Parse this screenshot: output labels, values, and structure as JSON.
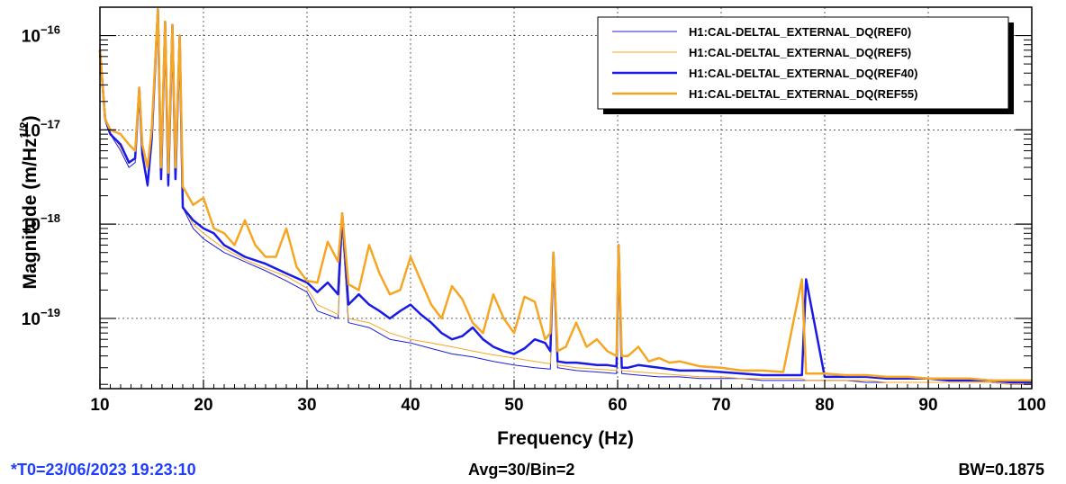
{
  "chart_data": {
    "type": "line",
    "xlabel": "Frequency (Hz)",
    "ylabel_main": "Magnitude (m/Hz",
    "ylabel_sup": "1/2",
    "ylabel_tail": ")",
    "xlim": [
      10,
      100
    ],
    "ylim": [
      1.8e-20,
      2e-16
    ],
    "yscale": "log",
    "grid": true,
    "legend_position": "top-right",
    "x_ticks": [
      10,
      20,
      30,
      40,
      50,
      60,
      70,
      80,
      90,
      100
    ],
    "y_ticks": [
      {
        "value": 1e-16,
        "base": "10",
        "exp": "−16"
      },
      {
        "value": 1e-17,
        "base": "10",
        "exp": "−17"
      },
      {
        "value": 1e-18,
        "base": "10",
        "exp": "−18"
      },
      {
        "value": 1e-19,
        "base": "10",
        "exp": "−19"
      }
    ],
    "series": [
      {
        "name": "H1:CAL-DELTAL_EXTERNAL_DQ(REF0)",
        "color": "#1f1fd6",
        "width": 1,
        "x": [
          10,
          10.5,
          11,
          12,
          12.8,
          13.4,
          13.8,
          14.1,
          14.6,
          15,
          15.6,
          15.9,
          16.3,
          16.6,
          17,
          17.3,
          17.7,
          18,
          19,
          20,
          22,
          24,
          26,
          28,
          30,
          31,
          33,
          33.4,
          34,
          36,
          38,
          40,
          42,
          44,
          46,
          48,
          50,
          52,
          53.5,
          53.8,
          54.2,
          56,
          58,
          59.9,
          60.1,
          60.4,
          62,
          64,
          66,
          68,
          70,
          72,
          74,
          76,
          77.8,
          78.2,
          80,
          82,
          84,
          86,
          88,
          90,
          92,
          94,
          96,
          98,
          100
        ],
        "y": [
          8e-17,
          1.4e-17,
          9e-18,
          6e-18,
          4e-18,
          4.5e-18,
          2.5e-17,
          5e-18,
          2.5e-18,
          8e-18,
          1.5e-16,
          3e-18,
          1.2e-16,
          2.5e-18,
          1.1e-16,
          3e-18,
          9e-17,
          1.5e-18,
          9e-19,
          7e-19,
          5e-19,
          4e-19,
          3.2e-19,
          2.5e-19,
          1.9e-19,
          1.2e-19,
          1e-19,
          9e-19,
          9e-20,
          8e-20,
          6e-20,
          5.5e-20,
          4.8e-20,
          4.2e-20,
          3.9e-20,
          3.5e-20,
          3.2e-20,
          3e-20,
          2.9e-20,
          4e-19,
          3e-20,
          2.8e-20,
          2.7e-20,
          2.6e-20,
          5e-19,
          2.6e-20,
          2.5e-20,
          2.4e-20,
          2.4e-20,
          2.3e-20,
          2.3e-20,
          2.3e-20,
          2.2e-20,
          2.2e-20,
          2.2e-20,
          2.2e-20,
          2.2e-20,
          2.2e-20,
          2.1e-20,
          2.1e-20,
          2.1e-20,
          2.1e-20,
          2.1e-20,
          2.1e-20,
          2.1e-20,
          2e-20,
          2e-20
        ]
      },
      {
        "name": "H1:CAL-DELTAL_EXTERNAL_DQ(REF5)",
        "color": "#f5a623",
        "width": 1,
        "x": [
          10,
          10.5,
          11,
          12,
          12.8,
          13.4,
          13.8,
          14.1,
          14.6,
          15,
          15.6,
          15.9,
          16.3,
          16.6,
          17,
          17.3,
          17.7,
          18,
          19,
          20,
          22,
          24,
          26,
          28,
          30,
          31,
          33,
          33.4,
          34,
          36,
          38,
          40,
          42,
          44,
          46,
          48,
          50,
          52,
          53.5,
          53.8,
          54.2,
          56,
          58,
          59.9,
          60.1,
          60.4,
          62,
          64,
          66,
          68,
          70,
          72,
          74,
          76,
          77.8,
          78.2,
          80,
          82,
          84,
          86,
          88,
          90,
          92,
          94,
          96,
          98,
          100
        ],
        "y": [
          8e-17,
          1.4e-17,
          9.5e-18,
          6.5e-18,
          4.5e-18,
          5e-18,
          2.5e-17,
          5.5e-18,
          2.8e-18,
          8e-18,
          1.5e-16,
          3.2e-18,
          1.2e-16,
          2.8e-18,
          1.1e-16,
          3.2e-18,
          9e-17,
          1.6e-18,
          1e-18,
          8e-19,
          5.5e-19,
          4.2e-19,
          3.4e-19,
          2.8e-19,
          2.1e-19,
          1.4e-19,
          1.1e-19,
          9e-19,
          1e-19,
          9e-20,
          7e-20,
          6e-20,
          5.5e-20,
          5e-20,
          4.5e-20,
          4.1e-20,
          3.8e-20,
          3.5e-20,
          3.3e-20,
          4e-19,
          3.2e-20,
          3e-20,
          2.9e-20,
          2.8e-20,
          5e-19,
          2.8e-20,
          2.7e-20,
          2.6e-20,
          2.5e-20,
          2.4e-20,
          2.4e-20,
          2.3e-20,
          2.3e-20,
          2.3e-20,
          2.3e-20,
          2.2e-20,
          2.2e-20,
          2.2e-20,
          2.2e-20,
          2.1e-20,
          2.1e-20,
          2.1e-20,
          2.1e-20,
          2.1e-20,
          2.1e-20,
          2e-20,
          2e-20
        ]
      },
      {
        "name": "H1:CAL-DELTAL_EXTERNAL_DQ(REF40)",
        "color": "#1a1ae6",
        "width": 2.5,
        "x": [
          10,
          10.5,
          11,
          12,
          12.8,
          13.4,
          13.8,
          14.1,
          14.6,
          15,
          15.6,
          15.9,
          16.3,
          16.6,
          17,
          17.3,
          17.7,
          18,
          19,
          20,
          21,
          22,
          24,
          26,
          28,
          30,
          31,
          32,
          33,
          33.4,
          34,
          35,
          36,
          37,
          38,
          39,
          40,
          41,
          42,
          43,
          44,
          45,
          46,
          47,
          48,
          49,
          50,
          51,
          52,
          53,
          53.5,
          53.8,
          54.2,
          55,
          56,
          57,
          58,
          59,
          59.9,
          60.1,
          60.4,
          61,
          62,
          64,
          66,
          68,
          70,
          72,
          74,
          76,
          77.8,
          78.2,
          80,
          82,
          84,
          86,
          88,
          90,
          92,
          94,
          96,
          98,
          100
        ],
        "y": [
          7e-17,
          1.3e-17,
          9e-18,
          7e-18,
          4.5e-18,
          5e-18,
          2.8e-17,
          5.5e-18,
          2.6e-18,
          8e-18,
          1.9e-16,
          3e-18,
          1.4e-16,
          2.6e-18,
          1.3e-16,
          3e-18,
          1e-16,
          1.5e-18,
          1.1e-18,
          9e-19,
          8e-19,
          6e-19,
          4.5e-19,
          3.8e-19,
          3e-19,
          2.4e-19,
          1.9e-19,
          2.4e-19,
          1.8e-19,
          1.3e-18,
          1.4e-19,
          1.8e-19,
          1.4e-19,
          1.2e-19,
          1e-19,
          1.2e-19,
          1.4e-19,
          1.1e-19,
          9e-20,
          7e-20,
          6e-20,
          6.5e-20,
          8e-20,
          6e-20,
          5e-20,
          4.5e-20,
          4.2e-20,
          4.8e-20,
          6e-20,
          5.5e-20,
          4.5e-20,
          5e-19,
          3.5e-20,
          3.4e-20,
          3.4e-20,
          3.3e-20,
          3.2e-20,
          3.2e-20,
          3.1e-20,
          6e-19,
          3e-20,
          3e-20,
          3.2e-20,
          3e-20,
          2.8e-20,
          2.8e-20,
          2.7e-20,
          2.6e-20,
          2.5e-20,
          2.5e-20,
          2.5e-20,
          2.6e-19,
          2.4e-20,
          2.4e-20,
          2.4e-20,
          2.3e-20,
          2.3e-20,
          2.3e-20,
          2.2e-20,
          2.2e-20,
          2.2e-20,
          2.1e-20,
          2.1e-20
        ]
      },
      {
        "name": "H1:CAL-DELTAL_EXTERNAL_DQ(REF55)",
        "color": "#f5a623",
        "width": 2.5,
        "x": [
          10,
          10.5,
          11,
          12,
          12.8,
          13.4,
          13.8,
          14.1,
          14.6,
          15,
          15.6,
          15.9,
          16.3,
          16.6,
          17,
          17.3,
          17.7,
          18,
          19,
          20,
          21,
          22,
          23,
          24,
          25,
          26,
          27,
          28,
          29,
          30,
          31,
          32,
          33,
          33.4,
          34,
          35,
          36,
          37,
          38,
          39,
          40,
          41,
          42,
          43,
          44,
          45,
          46,
          47,
          48,
          49,
          50,
          51,
          52,
          53,
          53.5,
          53.8,
          54.2,
          55,
          56,
          57,
          58,
          59,
          59.9,
          60.1,
          60.4,
          61,
          62,
          63,
          64,
          65,
          66,
          68,
          70,
          72,
          74,
          76,
          77.8,
          78.2,
          80,
          82,
          84,
          86,
          88,
          90,
          92,
          94,
          96,
          98,
          100
        ],
        "y": [
          7e-17,
          1.3e-17,
          1e-17,
          9e-18,
          7e-18,
          6e-18,
          2.8e-17,
          7e-18,
          4e-18,
          1e-17,
          1.9e-16,
          4e-18,
          1.4e-16,
          3.5e-18,
          1.3e-16,
          4e-18,
          1e-16,
          2.5e-18,
          1.6e-18,
          1.9e-18,
          9e-19,
          8e-19,
          6e-19,
          1.1e-18,
          6e-19,
          4.5e-19,
          4.5e-19,
          9e-19,
          3.5e-19,
          2.5e-19,
          2.4e-19,
          6.5e-19,
          4e-19,
          1.3e-18,
          2.3e-19,
          2e-19,
          6e-19,
          3e-19,
          1.8e-19,
          2e-19,
          4.5e-19,
          2.5e-19,
          1.4e-19,
          1e-19,
          2.2e-19,
          1.6e-19,
          9e-20,
          7e-20,
          1.8e-19,
          1e-19,
          7e-20,
          1.7e-19,
          1.5e-19,
          6e-20,
          7e-20,
          5e-19,
          4.5e-20,
          5e-20,
          9e-20,
          5e-20,
          6e-20,
          4.5e-20,
          4e-20,
          6e-19,
          4e-20,
          4e-20,
          5e-20,
          3.5e-20,
          3.8e-20,
          3.4e-20,
          3.5e-20,
          3.1e-20,
          3e-20,
          2.8e-20,
          2.8e-20,
          2.7e-20,
          2.6e-19,
          2.6e-20,
          2.6e-20,
          2.5e-20,
          2.5e-20,
          2.4e-20,
          2.4e-20,
          2.3e-20,
          2.3e-20,
          2.3e-20,
          2.2e-20,
          2.2e-20,
          2.2e-20
        ]
      }
    ]
  },
  "footer": {
    "t0": "*T0=23/06/2023 19:23:10",
    "avg": "Avg=30/Bin=2",
    "bw": "BW=0.1875"
  }
}
